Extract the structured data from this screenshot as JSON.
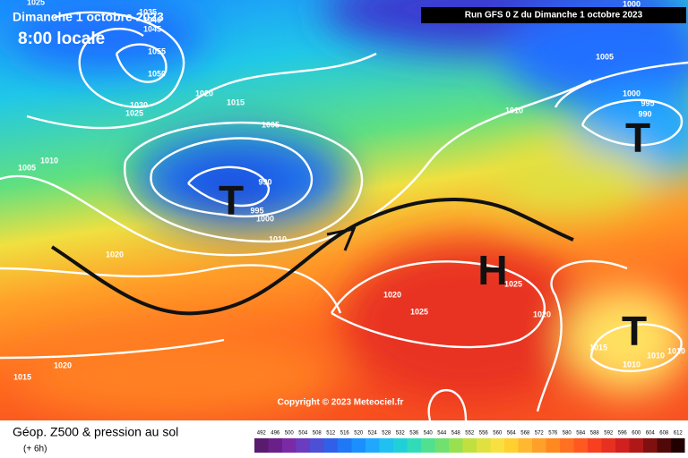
{
  "header": {
    "date": "Dimanche 1 octobre 2023",
    "time": "8:00 locale",
    "run": "Run GFS 0 Z du Dimanche 1 octobre 2023"
  },
  "pressure_labels": [
    "1025",
    "1035",
    "1040",
    "1045",
    "1055",
    "1050",
    "1030",
    "1025",
    "1020",
    "1015",
    "1005",
    "1010",
    "1005",
    "990",
    "995",
    "1000",
    "1010",
    "1020",
    "1020",
    "1025",
    "1025",
    "1020",
    "1010",
    "1005",
    "1000",
    "1000",
    "995",
    "990",
    "1015",
    "1010",
    "1010",
    "1010",
    "1020",
    "1015"
  ],
  "symbols": [
    "T",
    "T",
    "T",
    "H"
  ],
  "copyright": "Copyright © 2023 Meteociel.fr",
  "legend": {
    "title": "Géop. Z500 & pression au sol",
    "subtitle": "(+ 6h)",
    "scale": [
      492,
      496,
      500,
      504,
      508,
      512,
      516,
      520,
      524,
      528,
      532,
      536,
      540,
      544,
      548,
      552,
      556,
      560,
      564,
      568,
      572,
      576,
      580,
      584,
      588,
      592,
      596,
      600,
      604,
      608,
      612
    ],
    "colors": [
      "#5a1a6e",
      "#6a1f8a",
      "#7b2aa6",
      "#6a3cc0",
      "#4d4fd6",
      "#3060e8",
      "#1f78f5",
      "#1a90ff",
      "#20a8ff",
      "#20c0f0",
      "#20d0d8",
      "#30dcb8",
      "#50e090",
      "#70e070",
      "#98e050",
      "#c0e040",
      "#e0e040",
      "#f8e040",
      "#ffd030",
      "#ffb830",
      "#ffa028",
      "#ff8820",
      "#ff7020",
      "#ff5820",
      "#f84020",
      "#e83020",
      "#d02020",
      "#b01818",
      "#801010",
      "#500808",
      "#200000"
    ]
  }
}
